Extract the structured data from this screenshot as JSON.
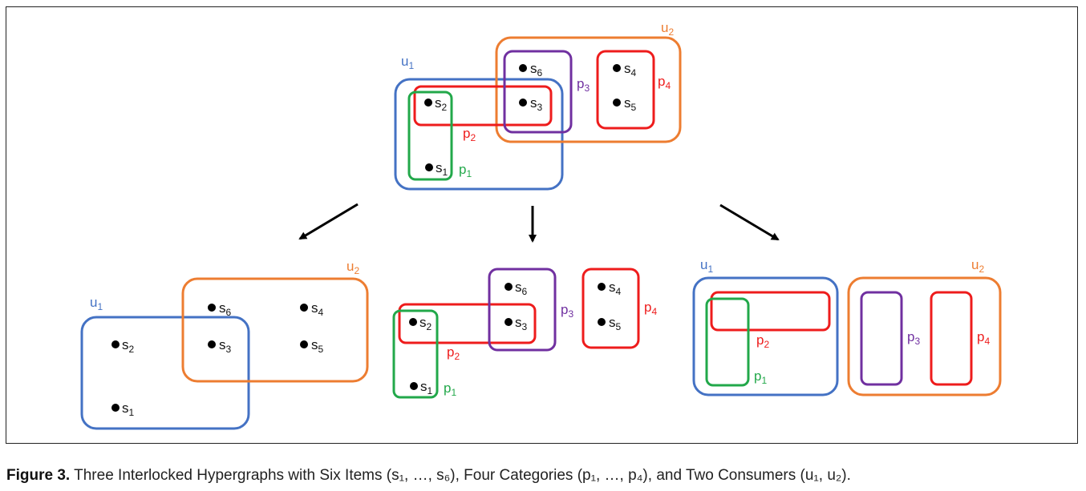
{
  "figure": {
    "caption_label": "Figure 3.",
    "caption_text": " Three Interlocked Hypergraphs with Six Items (s₁, …, s₆), Four Categories (p₁, …, p₄), and Two Consumers (u₁, u₂)."
  },
  "colors": {
    "u1": "#4472C4",
    "u2": "#ED7D31",
    "p1": "#22A84A",
    "p2": "#EE1C1C",
    "p3": "#7030A0",
    "p4": "#EE1C1C",
    "text": "#111111",
    "arrow": "#000000"
  },
  "labels": {
    "s1": "s",
    "s1_sub": "1",
    "s2": "s",
    "s2_sub": "2",
    "s3": "s",
    "s3_sub": "3",
    "s4": "s",
    "s4_sub": "4",
    "s5": "s",
    "s5_sub": "5",
    "s6": "s",
    "s6_sub": "6",
    "u1": "u",
    "u1_sub": "1",
    "u2": "u",
    "u2_sub": "2",
    "p1": "p",
    "p1_sub": "1",
    "p2": "p",
    "p2_sub": "2",
    "p3": "p",
    "p3_sub": "3",
    "p4": "p",
    "p4_sub": "4"
  }
}
